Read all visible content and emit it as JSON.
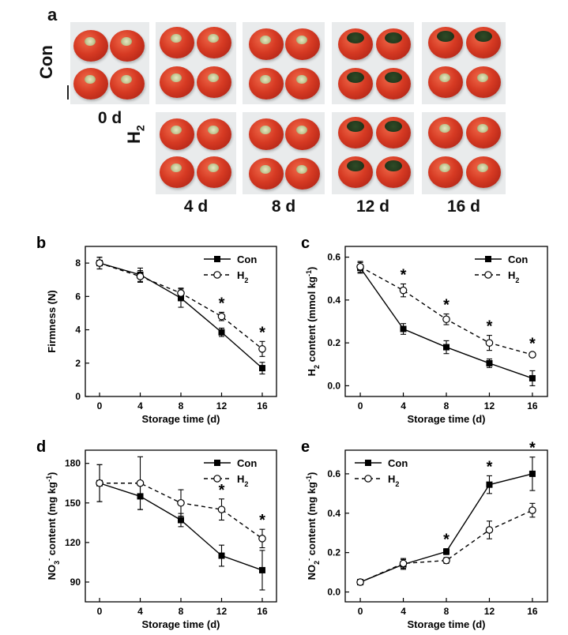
{
  "panel_a": {
    "letter": "a",
    "row_labels": [
      "Con",
      "H2"
    ],
    "columns": [
      "0 d",
      "4 d",
      "8 d",
      "12 d",
      "16 d"
    ]
  },
  "chart_data": [
    {
      "id": "b",
      "letter": "b",
      "type": "line",
      "xlabel": "Storage time (d)",
      "ylabel": "Firmness (N)",
      "x": [
        0,
        4,
        8,
        12,
        16
      ],
      "xticks": [
        "0",
        "4",
        "8",
        "12",
        "16"
      ],
      "ylim": [
        0,
        9
      ],
      "yticks": [
        0,
        2,
        4,
        6,
        8
      ],
      "ytick_labels": [
        "0",
        "2",
        "4",
        "6",
        "8"
      ],
      "legend": "top-right",
      "series": [
        {
          "name": "Con",
          "marker": "filled-square",
          "line": "solid",
          "values": [
            8.0,
            7.3,
            5.9,
            3.85,
            1.7
          ],
          "errors": [
            0.35,
            0.4,
            0.55,
            0.25,
            0.35
          ]
        },
        {
          "name": "H2",
          "marker": "open-circle",
          "line": "dashed",
          "values": [
            8.0,
            7.2,
            6.2,
            4.8,
            2.85
          ],
          "errors": [
            0.35,
            0.35,
            0.3,
            0.25,
            0.45
          ]
        }
      ],
      "significance": [
        {
          "x": 12,
          "label": "*"
        },
        {
          "x": 16,
          "label": "*"
        }
      ]
    },
    {
      "id": "c",
      "letter": "c",
      "type": "line",
      "xlabel": "Storage time (d)",
      "ylabel": "H2 content (mmol kg-1)",
      "x": [
        0,
        4,
        8,
        12,
        16
      ],
      "xticks": [
        "0",
        "4",
        "8",
        "12",
        "16"
      ],
      "ylim": [
        -0.05,
        0.65
      ],
      "yticks": [
        0.0,
        0.2,
        0.4,
        0.6
      ],
      "ytick_labels": [
        "0.0",
        "0.2",
        "0.4",
        "0.6"
      ],
      "legend": "top-right",
      "series": [
        {
          "name": "Con",
          "marker": "filled-square",
          "line": "solid",
          "values": [
            0.55,
            0.265,
            0.18,
            0.105,
            0.035
          ],
          "errors": [
            0.025,
            0.025,
            0.03,
            0.02,
            0.035
          ]
        },
        {
          "name": "H2",
          "marker": "open-circle",
          "line": "dashed",
          "values": [
            0.555,
            0.445,
            0.31,
            0.2,
            0.145
          ],
          "errors": [
            0.025,
            0.03,
            0.025,
            0.035,
            0.01
          ]
        }
      ],
      "significance": [
        {
          "x": 4,
          "label": "*"
        },
        {
          "x": 8,
          "label": "*"
        },
        {
          "x": 12,
          "label": "*"
        },
        {
          "x": 16,
          "label": "*"
        }
      ]
    },
    {
      "id": "d",
      "letter": "d",
      "type": "line",
      "xlabel": "Storage time (d)",
      "ylabel": "NO3- content (mg kg-1)",
      "x": [
        0,
        4,
        8,
        12,
        16
      ],
      "xticks": [
        "0",
        "4",
        "8",
        "12",
        "16"
      ],
      "ylim": [
        75,
        190
      ],
      "yticks": [
        90,
        120,
        150,
        180
      ],
      "ytick_labels": [
        "90",
        "120",
        "150",
        "180"
      ],
      "legend": "top-right",
      "series": [
        {
          "name": "Con",
          "marker": "filled-square",
          "line": "solid",
          "values": [
            165,
            155,
            137,
            110,
            99
          ],
          "errors": [
            14,
            10,
            5,
            8,
            15
          ]
        },
        {
          "name": "H2",
          "marker": "open-circle",
          "line": "dashed",
          "values": [
            165,
            165,
            150,
            145,
            123
          ],
          "errors": [
            14,
            20,
            10,
            8,
            7
          ]
        }
      ],
      "significance": [
        {
          "x": 12,
          "label": "*"
        },
        {
          "x": 16,
          "label": "*"
        }
      ]
    },
    {
      "id": "e",
      "letter": "e",
      "type": "line",
      "xlabel": "Storage time (d)",
      "ylabel": "NO2- content (mg kg-1)",
      "x": [
        0,
        4,
        8,
        12,
        16
      ],
      "xticks": [
        "0",
        "4",
        "8",
        "12",
        "16"
      ],
      "ylim": [
        -0.05,
        0.72
      ],
      "yticks": [
        0.0,
        0.2,
        0.4,
        0.6
      ],
      "ytick_labels": [
        "0.0",
        "0.2",
        "0.4",
        "0.6"
      ],
      "legend": "top-left",
      "series": [
        {
          "name": "Con",
          "marker": "filled-square",
          "line": "solid",
          "values": [
            0.05,
            0.14,
            0.205,
            0.545,
            0.6
          ],
          "errors": [
            0.012,
            0.025,
            0.015,
            0.045,
            0.085
          ]
        },
        {
          "name": "H2",
          "marker": "open-circle",
          "line": "dashed",
          "values": [
            0.05,
            0.145,
            0.16,
            0.315,
            0.415
          ],
          "errors": [
            0.012,
            0.025,
            0.015,
            0.045,
            0.035
          ]
        }
      ],
      "significance": [
        {
          "x": 8,
          "label": "*"
        },
        {
          "x": 12,
          "label": "*"
        },
        {
          "x": 16,
          "label": "*"
        }
      ]
    }
  ]
}
